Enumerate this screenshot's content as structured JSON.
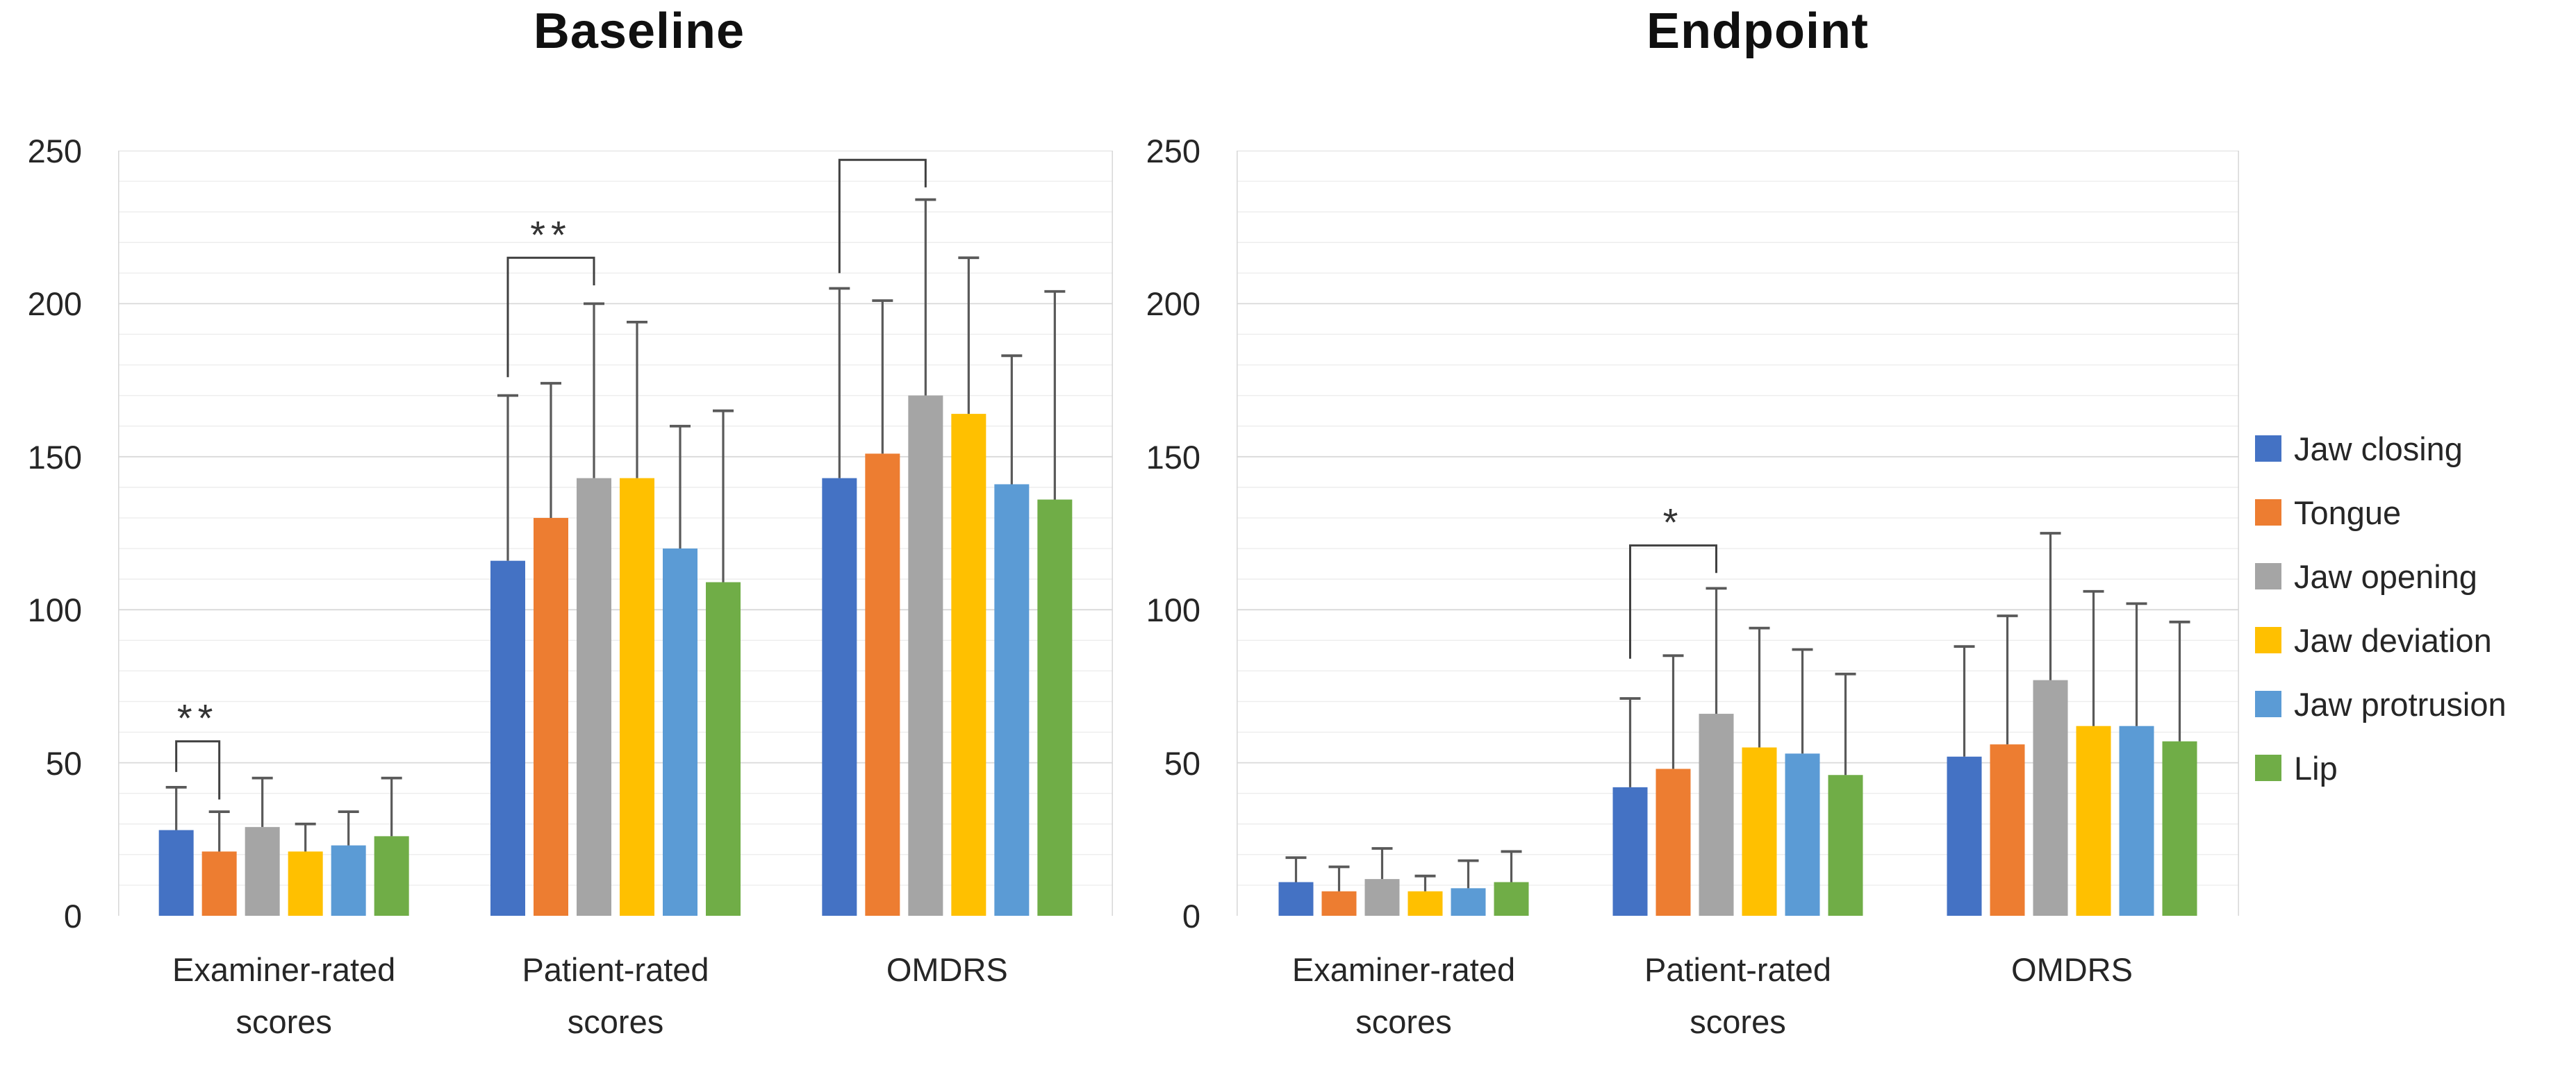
{
  "chart_data": {
    "type": "bar",
    "grid": true,
    "ylim": [
      0,
      250
    ],
    "yticks": [
      0,
      50,
      100,
      150,
      200,
      250
    ],
    "minor_gridline_step": 10,
    "error_bars": "upper",
    "error_bar_color": "#595959",
    "bracket_color": "#404040",
    "legend_position": "right",
    "legend_entries": [
      "Jaw closing",
      "Tongue",
      "Jaw opening",
      "Jaw deviation",
      "Jaw protrusion",
      "Lip"
    ],
    "series_colors": [
      "#4472C4",
      "#ED7D31",
      "#A5A5A5",
      "#FFC000",
      "#5B9BD5",
      "#70AD47"
    ],
    "categories": [
      "Examiner-rated scores",
      "Patient-rated scores",
      "OMDRS"
    ],
    "category_label_lines": [
      [
        "Examiner-rated",
        "scores"
      ],
      [
        "Patient-rated",
        "scores"
      ],
      [
        "OMDRS"
      ]
    ],
    "panels": [
      {
        "title": "Baseline",
        "series": [
          {
            "name": "Jaw closing",
            "color": "#4472C4",
            "values": [
              28,
              116,
              143
            ],
            "error_tops": [
              42,
              170,
              205
            ]
          },
          {
            "name": "Tongue",
            "color": "#ED7D31",
            "values": [
              21,
              130,
              151
            ],
            "error_tops": [
              34,
              174,
              201
            ]
          },
          {
            "name": "Jaw opening",
            "color": "#A5A5A5",
            "values": [
              29,
              143,
              170
            ],
            "error_tops": [
              45,
              200,
              234
            ]
          },
          {
            "name": "Jaw deviation",
            "color": "#FFC000",
            "values": [
              21,
              143,
              164
            ],
            "error_tops": [
              30,
              194,
              215
            ]
          },
          {
            "name": "Jaw protrusion",
            "color": "#5B9BD5",
            "values": [
              23,
              120,
              141
            ],
            "error_tops": [
              34,
              160,
              183
            ]
          },
          {
            "name": "Lip",
            "color": "#70AD47",
            "values": [
              26,
              109,
              136
            ],
            "error_tops": [
              45,
              165,
              204
            ]
          }
        ],
        "significance_brackets": [
          {
            "category_index": 0,
            "from_series": 0,
            "to_series": 1,
            "label": "**",
            "bracket_y": 57,
            "left_arm_end_y": 47,
            "right_arm_end_y": 38
          },
          {
            "category_index": 1,
            "from_series": 0,
            "to_series": 2,
            "label": "**",
            "bracket_y": 215,
            "left_arm_end_y": 176,
            "right_arm_end_y": 206
          },
          {
            "category_index": 2,
            "from_series": 0,
            "to_series": 2,
            "label": "*",
            "bracket_y": 247,
            "left_arm_end_y": 210,
            "right_arm_end_y": 238
          }
        ]
      },
      {
        "title": "Endpoint",
        "series": [
          {
            "name": "Jaw closing",
            "color": "#4472C4",
            "values": [
              11,
              42,
              52
            ],
            "error_tops": [
              19,
              71,
              88
            ]
          },
          {
            "name": "Tongue",
            "color": "#ED7D31",
            "values": [
              8,
              48,
              56
            ],
            "error_tops": [
              16,
              85,
              98
            ]
          },
          {
            "name": "Jaw opening",
            "color": "#A5A5A5",
            "values": [
              12,
              66,
              77
            ],
            "error_tops": [
              22,
              107,
              125
            ]
          },
          {
            "name": "Jaw deviation",
            "color": "#FFC000",
            "values": [
              8,
              55,
              62
            ],
            "error_tops": [
              13,
              94,
              106
            ]
          },
          {
            "name": "Jaw protrusion",
            "color": "#5B9BD5",
            "values": [
              9,
              53,
              62
            ],
            "error_tops": [
              18,
              87,
              102
            ]
          },
          {
            "name": "Lip",
            "color": "#70AD47",
            "values": [
              11,
              46,
              57
            ],
            "error_tops": [
              21,
              79,
              96
            ]
          }
        ],
        "significance_brackets": [
          {
            "category_index": 1,
            "from_series": 0,
            "to_series": 2,
            "label": "*",
            "bracket_y": 121,
            "left_arm_end_y": 84,
            "right_arm_end_y": 112
          }
        ]
      }
    ]
  }
}
